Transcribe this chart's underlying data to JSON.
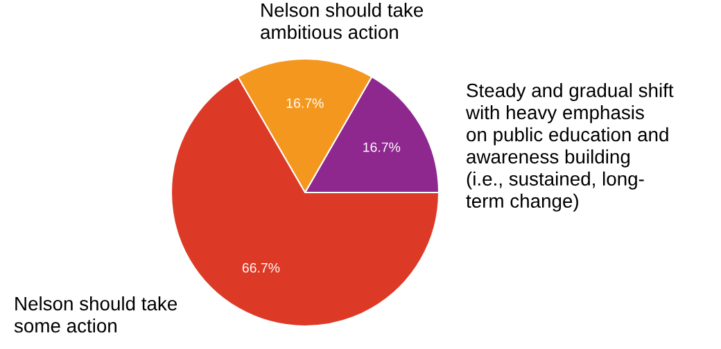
{
  "chart_data": {
    "type": "pie",
    "categories": [
      "Steady and gradual shift\nwith heavy emphasis\non public education and\nawareness building\n(i.e., sustained, long-\nterm change)",
      "Nelson should take\nambitious action",
      "Nelson should take\nsome action"
    ],
    "values": [
      16.7,
      16.7,
      66.7
    ],
    "colors": [
      "#8e288f",
      "#f4971e",
      "#dc3a26"
    ],
    "value_labels": [
      "16.7%",
      "16.7%",
      "66.7%"
    ]
  }
}
